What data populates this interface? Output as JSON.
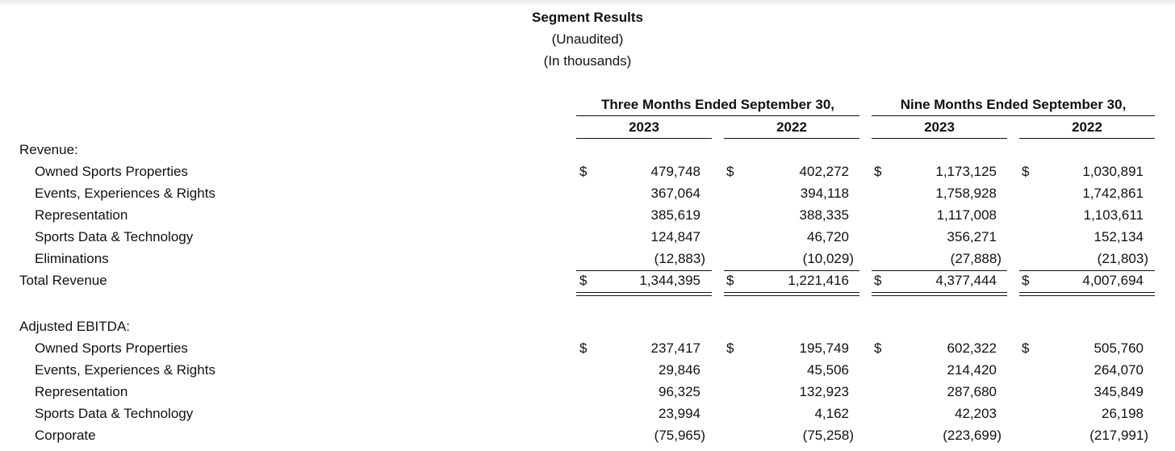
{
  "title": "Segment Results",
  "subtitle1": "(Unaudited)",
  "subtitle2": "(In thousands)",
  "currency_symbol": "$",
  "groups": [
    {
      "label": "Three Months Ended September 30,",
      "years": [
        "2023",
        "2022"
      ]
    },
    {
      "label": "Nine Months Ended September 30,",
      "years": [
        "2023",
        "2022"
      ]
    }
  ],
  "sections": [
    {
      "header": "Revenue:",
      "rows": [
        {
          "label": "Owned Sports Properties",
          "values": [
            "479,748",
            "402,272",
            "1,173,125",
            "1,030,891"
          ],
          "dollar": true
        },
        {
          "label": "Events, Experiences & Rights",
          "values": [
            "367,064",
            "394,118",
            "1,758,928",
            "1,742,861"
          ],
          "dollar": false
        },
        {
          "label": "Representation",
          "values": [
            "385,619",
            "388,335",
            "1,117,008",
            "1,103,611"
          ],
          "dollar": false
        },
        {
          "label": "Sports Data & Technology",
          "values": [
            "124,847",
            "46,720",
            "356,271",
            "152,134"
          ],
          "dollar": false
        },
        {
          "label": "Eliminations",
          "values": [
            "(12,883)",
            "(10,029)",
            "(27,888)",
            "(21,803)"
          ],
          "dollar": false
        }
      ],
      "total": {
        "label": "Total Revenue",
        "values": [
          "1,344,395",
          "1,221,416",
          "4,377,444",
          "4,007,694"
        ]
      }
    },
    {
      "header": "Adjusted EBITDA:",
      "rows": [
        {
          "label": "Owned Sports Properties",
          "values": [
            "237,417",
            "195,749",
            "602,322",
            "505,760"
          ],
          "dollar": true
        },
        {
          "label": "Events, Experiences & Rights",
          "values": [
            "29,846",
            "45,506",
            "214,420",
            "264,070"
          ],
          "dollar": false
        },
        {
          "label": "Representation",
          "values": [
            "96,325",
            "132,923",
            "287,680",
            "345,849"
          ],
          "dollar": false
        },
        {
          "label": "Sports Data & Technology",
          "values": [
            "23,994",
            "4,162",
            "42,203",
            "26,198"
          ],
          "dollar": false
        },
        {
          "label": "Corporate",
          "values": [
            "(75,965)",
            "(75,258)",
            "(223,699)",
            "(217,991)"
          ],
          "dollar": false
        }
      ]
    }
  ]
}
